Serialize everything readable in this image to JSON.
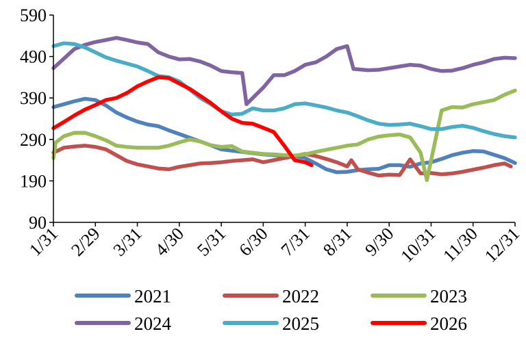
{
  "chart_data": {
    "type": "line",
    "title": "",
    "xlabel": "",
    "ylabel": "",
    "ylim": [
      90,
      590
    ],
    "yticks": [
      90,
      190,
      290,
      390,
      490,
      590
    ],
    "xlim": [
      0,
      11
    ],
    "xticks": [
      "1/31",
      "2/29",
      "3/31",
      "4/30",
      "5/31",
      "6/30",
      "7/31",
      "8/31",
      "9/30",
      "10/31",
      "11/30",
      "12/31"
    ],
    "grid": false,
    "legend_position": "bottom",
    "series": [
      {
        "name": "2021",
        "color": "#4F81BD",
        "points": [
          [
            0,
            368
          ],
          [
            0.25,
            375
          ],
          [
            0.5,
            382
          ],
          [
            0.75,
            388
          ],
          [
            1,
            385
          ],
          [
            1.25,
            372
          ],
          [
            1.5,
            355
          ],
          [
            1.75,
            343
          ],
          [
            2,
            333
          ],
          [
            2.25,
            326
          ],
          [
            2.5,
            322
          ],
          [
            2.75,
            312
          ],
          [
            3,
            303
          ],
          [
            3.25,
            294
          ],
          [
            3.5,
            285
          ],
          [
            3.75,
            276
          ],
          [
            4,
            266
          ],
          [
            4.25,
            263
          ],
          [
            4.5,
            260
          ],
          [
            4.75,
            257
          ],
          [
            5,
            254
          ],
          [
            5.25,
            252
          ],
          [
            5.5,
            250
          ],
          [
            5.75,
            250
          ],
          [
            6,
            245
          ],
          [
            6.25,
            232
          ],
          [
            6.5,
            218
          ],
          [
            6.75,
            211
          ],
          [
            7,
            212
          ],
          [
            7.25,
            216
          ],
          [
            7.5,
            218
          ],
          [
            7.75,
            219
          ],
          [
            8,
            228
          ],
          [
            8.25,
            228
          ],
          [
            8.5,
            224
          ],
          [
            8.75,
            232
          ],
          [
            9,
            235
          ],
          [
            9.25,
            243
          ],
          [
            9.5,
            252
          ],
          [
            9.75,
            258
          ],
          [
            10,
            262
          ],
          [
            10.25,
            261
          ],
          [
            10.5,
            253
          ],
          [
            10.75,
            245
          ],
          [
            11,
            233
          ]
        ]
      },
      {
        "name": "2022",
        "color": "#C0504D",
        "points": [
          [
            0,
            258
          ],
          [
            0.25,
            270
          ],
          [
            0.5,
            273
          ],
          [
            0.75,
            275
          ],
          [
            1,
            272
          ],
          [
            1.25,
            266
          ],
          [
            1.5,
            252
          ],
          [
            1.75,
            238
          ],
          [
            2,
            230
          ],
          [
            2.25,
            225
          ],
          [
            2.5,
            220
          ],
          [
            2.75,
            218
          ],
          [
            3,
            224
          ],
          [
            3.25,
            228
          ],
          [
            3.5,
            232
          ],
          [
            3.75,
            233
          ],
          [
            4,
            235
          ],
          [
            4.25,
            238
          ],
          [
            4.5,
            240
          ],
          [
            4.75,
            242
          ],
          [
            5,
            235
          ],
          [
            5.25,
            240
          ],
          [
            5.5,
            245
          ],
          [
            5.75,
            250
          ],
          [
            6,
            255
          ],
          [
            6.25,
            250
          ],
          [
            6.5,
            243
          ],
          [
            6.75,
            235
          ],
          [
            7,
            225
          ],
          [
            7.1,
            240
          ],
          [
            7.25,
            218
          ],
          [
            7.5,
            210
          ],
          [
            7.75,
            203
          ],
          [
            8,
            205
          ],
          [
            8.25,
            204
          ],
          [
            8.5,
            242
          ],
          [
            8.75,
            208
          ],
          [
            9,
            209
          ],
          [
            9.25,
            206
          ],
          [
            9.5,
            208
          ],
          [
            9.75,
            212
          ],
          [
            10,
            217
          ],
          [
            10.25,
            222
          ],
          [
            10.5,
            228
          ],
          [
            10.75,
            232
          ],
          [
            10.9,
            225
          ]
        ]
      },
      {
        "name": "2023",
        "color": "#9BBB59",
        "points": [
          [
            0,
            245
          ],
          [
            0.05,
            282
          ],
          [
            0.25,
            298
          ],
          [
            0.5,
            306
          ],
          [
            0.75,
            306
          ],
          [
            1,
            298
          ],
          [
            1.25,
            288
          ],
          [
            1.5,
            275
          ],
          [
            1.75,
            272
          ],
          [
            2,
            270
          ],
          [
            2.25,
            270
          ],
          [
            2.5,
            270
          ],
          [
            2.75,
            275
          ],
          [
            3,
            283
          ],
          [
            3.25,
            290
          ],
          [
            3.5,
            285
          ],
          [
            3.75,
            276
          ],
          [
            4,
            272
          ],
          [
            4.25,
            274
          ],
          [
            4.5,
            261
          ],
          [
            4.75,
            258
          ],
          [
            5,
            255
          ],
          [
            5.25,
            254
          ],
          [
            5.5,
            252
          ],
          [
            5.75,
            251
          ],
          [
            6,
            254
          ],
          [
            6.25,
            260
          ],
          [
            6.5,
            265
          ],
          [
            6.75,
            270
          ],
          [
            7,
            275
          ],
          [
            7.25,
            278
          ],
          [
            7.5,
            290
          ],
          [
            7.75,
            297
          ],
          [
            8,
            300
          ],
          [
            8.25,
            302
          ],
          [
            8.5,
            295
          ],
          [
            8.75,
            258
          ],
          [
            8.9,
            192
          ],
          [
            9,
            240
          ],
          [
            9.25,
            360
          ],
          [
            9.5,
            368
          ],
          [
            9.75,
            367
          ],
          [
            10,
            375
          ],
          [
            10.25,
            380
          ],
          [
            10.5,
            385
          ],
          [
            10.75,
            398
          ],
          [
            11,
            408
          ]
        ]
      },
      {
        "name": "2024",
        "color": "#8064A2",
        "points": [
          [
            0,
            462
          ],
          [
            0.25,
            485
          ],
          [
            0.5,
            508
          ],
          [
            0.75,
            518
          ],
          [
            1,
            525
          ],
          [
            1.25,
            530
          ],
          [
            1.5,
            535
          ],
          [
            1.75,
            530
          ],
          [
            2,
            524
          ],
          [
            2.25,
            520
          ],
          [
            2.5,
            500
          ],
          [
            2.75,
            490
          ],
          [
            3,
            483
          ],
          [
            3.25,
            484
          ],
          [
            3.5,
            478
          ],
          [
            3.75,
            468
          ],
          [
            4,
            455
          ],
          [
            4.25,
            452
          ],
          [
            4.5,
            450
          ],
          [
            4.6,
            375
          ],
          [
            4.75,
            390
          ],
          [
            5,
            415
          ],
          [
            5.25,
            445
          ],
          [
            5.5,
            445
          ],
          [
            5.75,
            455
          ],
          [
            6,
            470
          ],
          [
            6.25,
            476
          ],
          [
            6.5,
            490
          ],
          [
            6.75,
            508
          ],
          [
            7,
            515
          ],
          [
            7.15,
            460
          ],
          [
            7.5,
            457
          ],
          [
            7.75,
            458
          ],
          [
            8,
            462
          ],
          [
            8.25,
            466
          ],
          [
            8.5,
            470
          ],
          [
            8.75,
            468
          ],
          [
            9,
            460
          ],
          [
            9.25,
            455
          ],
          [
            9.5,
            456
          ],
          [
            9.75,
            462
          ],
          [
            10,
            470
          ],
          [
            10.25,
            476
          ],
          [
            10.5,
            484
          ],
          [
            10.75,
            487
          ],
          [
            11,
            486
          ]
        ]
      },
      {
        "name": "2025",
        "color": "#4BACC6",
        "points": [
          [
            0,
            515
          ],
          [
            0.25,
            522
          ],
          [
            0.5,
            520
          ],
          [
            0.75,
            512
          ],
          [
            1,
            500
          ],
          [
            1.25,
            488
          ],
          [
            1.5,
            480
          ],
          [
            1.75,
            473
          ],
          [
            2,
            466
          ],
          [
            2.25,
            455
          ],
          [
            2.5,
            443
          ],
          [
            2.75,
            440
          ],
          [
            3,
            430
          ],
          [
            3.25,
            410
          ],
          [
            3.5,
            390
          ],
          [
            3.75,
            375
          ],
          [
            4,
            358
          ],
          [
            4.25,
            350
          ],
          [
            4.5,
            352
          ],
          [
            4.75,
            365
          ],
          [
            5,
            360
          ],
          [
            5.25,
            360
          ],
          [
            5.5,
            365
          ],
          [
            5.75,
            375
          ],
          [
            6,
            377
          ],
          [
            6.25,
            372
          ],
          [
            6.5,
            367
          ],
          [
            6.75,
            360
          ],
          [
            7,
            355
          ],
          [
            7.25,
            346
          ],
          [
            7.5,
            336
          ],
          [
            7.75,
            328
          ],
          [
            8,
            325
          ],
          [
            8.25,
            326
          ],
          [
            8.5,
            328
          ],
          [
            8.75,
            322
          ],
          [
            9,
            315
          ],
          [
            9.25,
            315
          ],
          [
            9.5,
            320
          ],
          [
            9.75,
            323
          ],
          [
            10,
            318
          ],
          [
            10.25,
            310
          ],
          [
            10.5,
            303
          ],
          [
            10.75,
            298
          ],
          [
            11,
            295
          ]
        ]
      },
      {
        "name": "2026",
        "color": "#FF0000",
        "points": [
          [
            0,
            317
          ],
          [
            0.25,
            332
          ],
          [
            0.5,
            348
          ],
          [
            0.75,
            362
          ],
          [
            1,
            373
          ],
          [
            1.25,
            385
          ],
          [
            1.5,
            390
          ],
          [
            1.75,
            402
          ],
          [
            2,
            418
          ],
          [
            2.25,
            430
          ],
          [
            2.5,
            440
          ],
          [
            2.75,
            438
          ],
          [
            3,
            425
          ],
          [
            3.25,
            412
          ],
          [
            3.5,
            395
          ],
          [
            3.75,
            378
          ],
          [
            4,
            358
          ],
          [
            4.25,
            340
          ],
          [
            4.5,
            330
          ],
          [
            4.75,
            328
          ],
          [
            5,
            318
          ],
          [
            5.25,
            308
          ],
          [
            5.5,
            275
          ],
          [
            5.75,
            240
          ],
          [
            6,
            235
          ],
          [
            6.15,
            228
          ]
        ]
      }
    ]
  }
}
